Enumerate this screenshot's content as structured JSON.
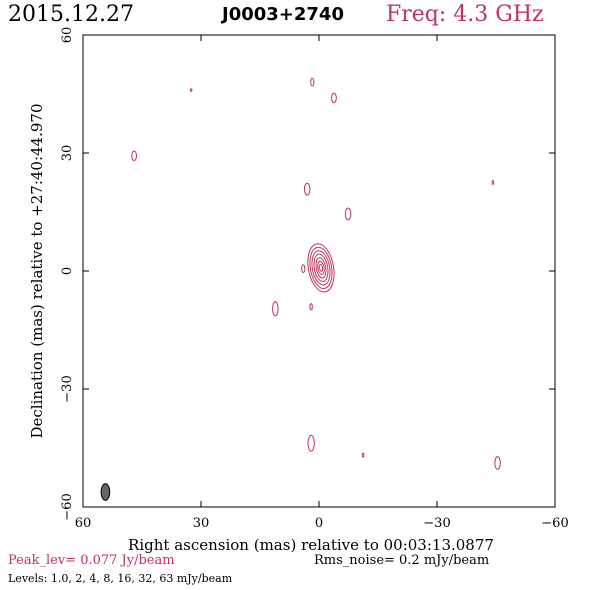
{
  "header": {
    "date": "2015.12.27",
    "source": "J0003+2740",
    "freq": "Freq: 4.3 GHz"
  },
  "footer": {
    "peak": "Peak_lev=  0.077 Jy/beam",
    "rms": "Rms_noise=  0.2 mJy/beam",
    "levels": "Levels: 1.0,   2,   4,   8,  16,  32,  63 mJy/beam"
  },
  "colors": {
    "contour": "#c0345a",
    "beam": "#666666",
    "text": "#000000"
  },
  "chart_data": {
    "type": "contour",
    "xlabel": "Right ascension (mas) relative to 00:03:13.0877",
    "ylabel": "Declination (mas) relative to +27:40:44.970",
    "xlim": [
      60,
      -60
    ],
    "ylim": [
      -60,
      60
    ],
    "xticks": [
      60,
      30,
      0,
      -30,
      -60
    ],
    "yticks": [
      -60,
      -30,
      0,
      30,
      60
    ],
    "xtick_labels": [
      "60",
      "30",
      "0",
      "−30",
      "−60"
    ],
    "ytick_labels": [
      "−60",
      "−30",
      "0",
      "30",
      "60"
    ],
    "levels_mJy": [
      1.0,
      2,
      4,
      8,
      16,
      32,
      63
    ],
    "peak_Jy_per_beam": 0.077,
    "rms_mJy_per_beam": 0.2,
    "core": {
      "x": -0.5,
      "y": 0.8,
      "contours": [
        {
          "rx": 3.2,
          "ry": 6.2,
          "angle": -10
        },
        {
          "rx": 2.7,
          "ry": 5.3,
          "angle": -10
        },
        {
          "rx": 2.2,
          "ry": 4.4,
          "angle": -10
        },
        {
          "rx": 1.7,
          "ry": 3.5,
          "angle": -10
        },
        {
          "rx": 1.2,
          "ry": 2.6,
          "angle": -10
        },
        {
          "rx": 0.8,
          "ry": 1.7,
          "angle": -10
        },
        {
          "rx": 0.4,
          "ry": 0.9,
          "angle": -10
        }
      ]
    },
    "components": [
      {
        "x": 1.7,
        "y": 48.0,
        "rx": 0.4,
        "ry": 1.0
      },
      {
        "x": 32.5,
        "y": 46.0,
        "rx": 0.2,
        "ry": 0.3
      },
      {
        "x": -3.8,
        "y": 44.0,
        "rx": 0.6,
        "ry": 1.2
      },
      {
        "x": 47.0,
        "y": 29.3,
        "rx": 0.6,
        "ry": 1.2
      },
      {
        "x": 3.0,
        "y": 20.8,
        "rx": 0.7,
        "ry": 1.5
      },
      {
        "x": -44.2,
        "y": 22.5,
        "rx": 0.2,
        "ry": 0.5
      },
      {
        "x": -7.4,
        "y": 14.5,
        "rx": 0.7,
        "ry": 1.5
      },
      {
        "x": 4.0,
        "y": 0.6,
        "rx": 0.4,
        "ry": 1.0
      },
      {
        "x": 11.1,
        "y": -9.6,
        "rx": 0.7,
        "ry": 1.8
      },
      {
        "x": 2.0,
        "y": -9.1,
        "rx": 0.3,
        "ry": 0.8
      },
      {
        "x": 2.0,
        "y": -43.8,
        "rx": 0.8,
        "ry": 2.0
      },
      {
        "x": -11.2,
        "y": -46.8,
        "rx": 0.2,
        "ry": 0.5
      },
      {
        "x": -45.4,
        "y": -48.8,
        "rx": 0.7,
        "ry": 1.6
      }
    ],
    "beam": {
      "x": 54.3,
      "y": -56.2,
      "rx": 1.1,
      "ry": 2.1
    }
  }
}
